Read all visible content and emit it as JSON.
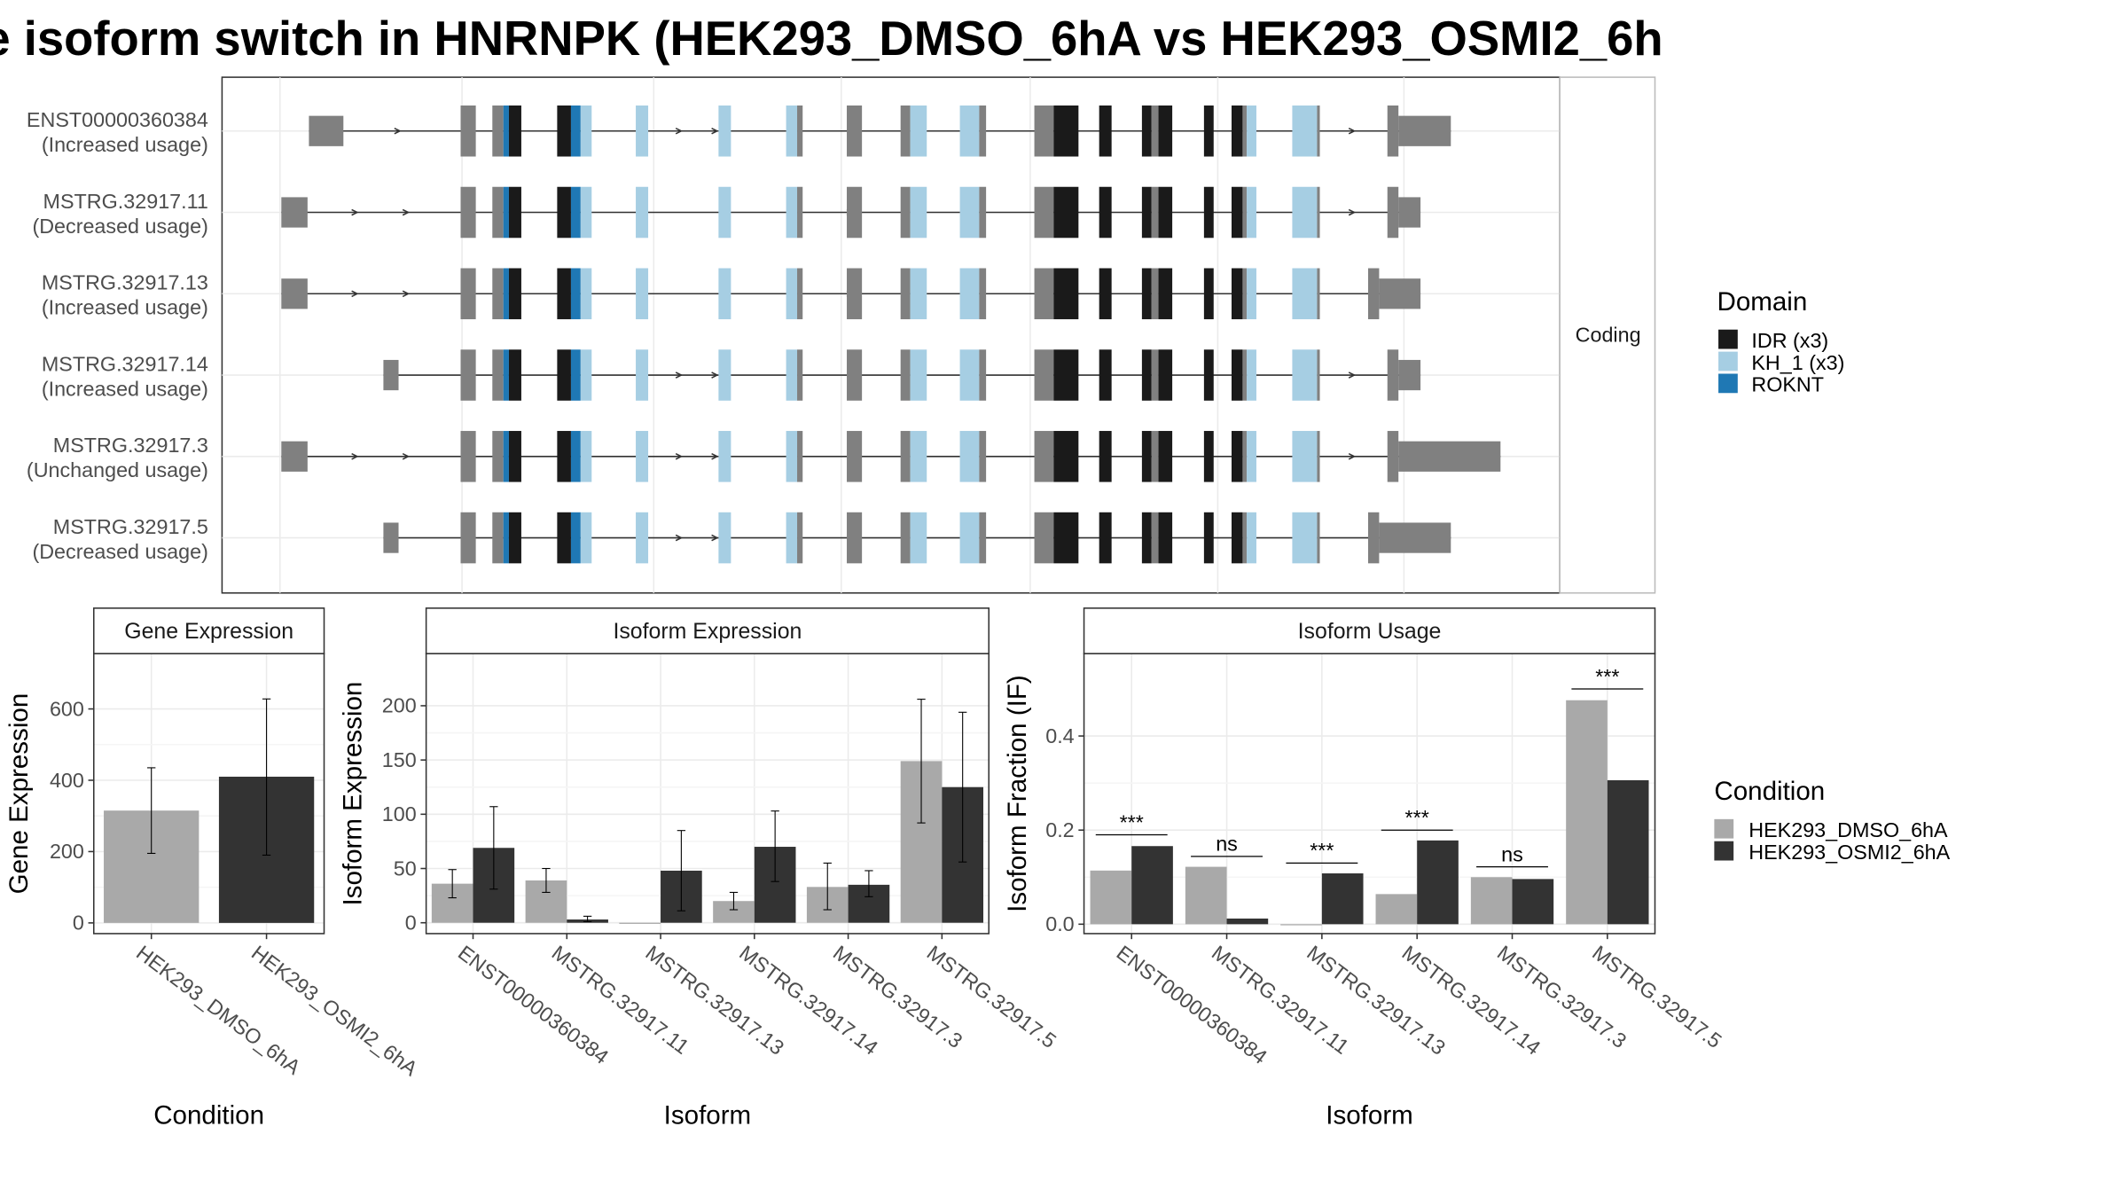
{
  "title": "e isoform switch in HNRNPK (HEK293_DMSO_6hA vs HEK293_OSMI2_6h",
  "structure": {
    "isoforms": [
      {
        "name": "ENST00000360384",
        "usage": "(Increased usage)"
      },
      {
        "name": "MSTRG.32917.11",
        "usage": "(Decreased usage)"
      },
      {
        "name": "MSTRG.32917.13",
        "usage": "(Increased usage)"
      },
      {
        "name": "MSTRG.32917.14",
        "usage": "(Increased usage)"
      },
      {
        "name": "MSTRG.32917.3",
        "usage": "(Unchanged usage)"
      },
      {
        "name": "MSTRG.32917.5",
        "usage": "(Decreased usage)"
      }
    ],
    "strip_label": "Coding",
    "legend_title": "Domain",
    "domains": [
      {
        "label": "IDR (x3)",
        "color": "#1a1a1a"
      },
      {
        "label": "KH_1 (x3)",
        "color": "#a6cee3"
      },
      {
        "label": "ROKNT",
        "color": "#1f78b4"
      }
    ],
    "exon_color": "#808080"
  },
  "chart_data": [
    {
      "type": "bar",
      "title": "Gene Expression",
      "xlabel": "Condition",
      "ylabel": "Gene Expression",
      "categories": [
        "HEK293_DMSO_6hA",
        "HEK293_OSMI2_6hA"
      ],
      "yticks": [
        0,
        200,
        400,
        600
      ],
      "ylim": [
        -30,
        755
      ],
      "series": [
        {
          "name": "HEK293_DMSO_6hA",
          "values": [
            315,
            null
          ],
          "err_low": [
            195,
            null
          ],
          "err_high": [
            435,
            null
          ]
        },
        {
          "name": "HEK293_OSMI2_6hA",
          "values": [
            null,
            410
          ],
          "err_low": [
            null,
            190
          ],
          "err_high": [
            null,
            628
          ]
        }
      ]
    },
    {
      "type": "bar",
      "title": "Isoform Expression",
      "xlabel": "Isoform",
      "ylabel": "Isoform Expression",
      "categories": [
        "ENST00000360384",
        "MSTRG.32917.11",
        "MSTRG.32917.13",
        "MSTRG.32917.14",
        "MSTRG.32917.3",
        "MSTRG.32917.5"
      ],
      "yticks": [
        0,
        50,
        100,
        150,
        200
      ],
      "ylim": [
        -10,
        248
      ],
      "series": [
        {
          "name": "HEK293_DMSO_6hA",
          "values": [
            36,
            39,
            0,
            20,
            33,
            149
          ],
          "err_low": [
            23,
            28,
            0,
            12,
            12,
            92
          ],
          "err_high": [
            49,
            50,
            0,
            28,
            55,
            206
          ]
        },
        {
          "name": "HEK293_OSMI2_6hA",
          "values": [
            69,
            3,
            48,
            70,
            35,
            125
          ],
          "err_low": [
            31,
            1,
            11,
            38,
            24,
            56
          ],
          "err_high": [
            107,
            6,
            85,
            103,
            48,
            194
          ]
        }
      ]
    },
    {
      "type": "bar",
      "title": "Isoform Usage",
      "xlabel": "Isoform",
      "ylabel": "Isoform Fraction (IF)",
      "categories": [
        "ENST00000360384",
        "MSTRG.32917.11",
        "MSTRG.32917.13",
        "MSTRG.32917.14",
        "MSTRG.32917.3",
        "MSTRG.32917.5"
      ],
      "yticks": [
        0.0,
        0.2,
        0.4
      ],
      "ytick_labels": [
        "0.0",
        "0.2",
        "0.4"
      ],
      "ylim": [
        -0.02,
        0.575
      ],
      "series": [
        {
          "name": "HEK293_DMSO_6hA",
          "values": [
            0.114,
            0.122,
            0.0,
            0.064,
            0.1,
            0.476
          ]
        },
        {
          "name": "HEK293_OSMI2_6hA",
          "values": [
            0.166,
            0.012,
            0.108,
            0.178,
            0.096,
            0.306
          ]
        }
      ],
      "significance": [
        "***",
        "ns",
        "***",
        "***",
        "ns",
        "***"
      ],
      "significance_level": [
        0.19,
        0.144,
        0.13,
        0.2,
        0.122,
        0.5
      ]
    }
  ],
  "condition_legend": {
    "title": "Condition",
    "items": [
      {
        "label": "HEK293_DMSO_6hA",
        "color": "#a9a9a9"
      },
      {
        "label": "HEK293_OSMI2_6hA",
        "color": "#333333"
      }
    ]
  }
}
